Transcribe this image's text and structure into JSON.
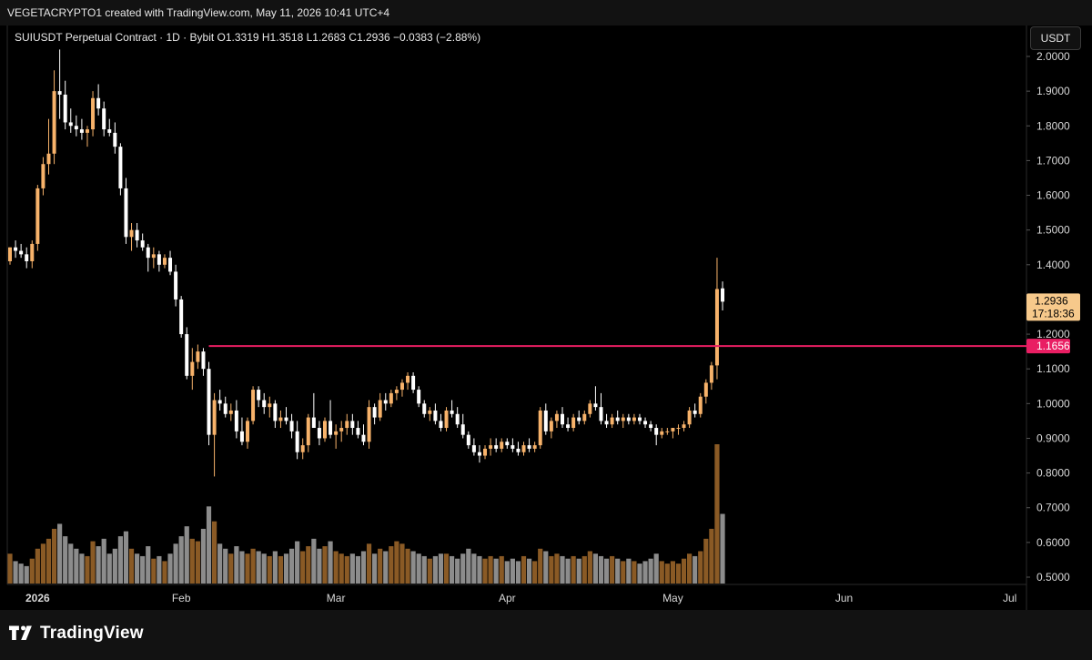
{
  "header": {
    "credit": "VEGETACRYPTO1 created with TradingView.com, May 11, 2026 10:41 UTC+4"
  },
  "legend": {
    "text": "SUIUSDT Perpetual Contract · 1D · Bybit  O1.3319  H1.3518  L1.2683  C1.2936  −0.0383 (−2.88%)"
  },
  "currency_button": "USDT",
  "footer": {
    "logo_text": "TradingView"
  },
  "colors": {
    "up": "#f7b26a",
    "down": "#ffffff",
    "vol_up": "#8a5a25",
    "vol_down": "#8c8c8c",
    "level_line": "#e91e63",
    "last_price_bg": "#f7c98b"
  },
  "chart_data": {
    "type": "candlestick",
    "symbol": "SUIUSDT",
    "interval": "1D",
    "exchange": "Bybit",
    "ylim": [
      0.47,
      2.06
    ],
    "y_ticks": [
      "2.0000",
      "1.9000",
      "1.8000",
      "1.7000",
      "1.6000",
      "1.5000",
      "1.4000",
      "1.3000",
      "1.2000",
      "1.1000",
      "1.0000",
      "0.9000",
      "0.8000",
      "0.7000",
      "0.6000",
      "0.5000"
    ],
    "x_labels": [
      {
        "label": "2026",
        "day": 0,
        "bold": true
      },
      {
        "label": "Feb",
        "day": 31
      },
      {
        "label": "Mar",
        "day": 59
      },
      {
        "label": "Apr",
        "day": 90
      },
      {
        "label": "May",
        "day": 120
      },
      {
        "label": "Jun",
        "day": 151
      },
      {
        "label": "Jul",
        "day": 181
      }
    ],
    "key_level": {
      "value": 1.1656,
      "label": "1.1656",
      "start_day": 36
    },
    "last_price": {
      "value": 1.2936,
      "label": "1.2936",
      "countdown": "17:18:36"
    },
    "candles": [
      [
        1.41,
        1.45,
        1.4,
        1.45,
        60
      ],
      [
        1.45,
        1.47,
        1.42,
        1.44,
        45
      ],
      [
        1.44,
        1.46,
        1.42,
        1.43,
        40
      ],
      [
        1.43,
        1.45,
        1.39,
        1.41,
        35
      ],
      [
        1.41,
        1.47,
        1.39,
        1.46,
        50
      ],
      [
        1.46,
        1.63,
        1.44,
        1.62,
        70
      ],
      [
        1.62,
        1.71,
        1.6,
        1.69,
        80
      ],
      [
        1.69,
        1.82,
        1.66,
        1.72,
        90
      ],
      [
        1.72,
        1.96,
        1.69,
        1.9,
        110
      ],
      [
        1.9,
        2.02,
        1.82,
        1.89,
        120
      ],
      [
        1.89,
        1.93,
        1.79,
        1.81,
        95
      ],
      [
        1.81,
        1.85,
        1.78,
        1.8,
        80
      ],
      [
        1.8,
        1.83,
        1.77,
        1.79,
        70
      ],
      [
        1.79,
        1.82,
        1.76,
        1.78,
        60
      ],
      [
        1.78,
        1.8,
        1.74,
        1.79,
        55
      ],
      [
        1.79,
        1.9,
        1.77,
        1.88,
        85
      ],
      [
        1.88,
        1.92,
        1.83,
        1.85,
        75
      ],
      [
        1.85,
        1.87,
        1.77,
        1.79,
        90
      ],
      [
        1.79,
        1.82,
        1.77,
        1.78,
        60
      ],
      [
        1.78,
        1.81,
        1.72,
        1.74,
        70
      ],
      [
        1.74,
        1.75,
        1.6,
        1.62,
        95
      ],
      [
        1.62,
        1.65,
        1.46,
        1.48,
        105
      ],
      [
        1.48,
        1.52,
        1.44,
        1.5,
        70
      ],
      [
        1.5,
        1.52,
        1.45,
        1.47,
        60
      ],
      [
        1.47,
        1.49,
        1.44,
        1.45,
        55
      ],
      [
        1.45,
        1.46,
        1.38,
        1.42,
        75
      ],
      [
        1.42,
        1.45,
        1.39,
        1.43,
        50
      ],
      [
        1.43,
        1.44,
        1.38,
        1.4,
        55
      ],
      [
        1.4,
        1.43,
        1.39,
        1.42,
        45
      ],
      [
        1.42,
        1.44,
        1.37,
        1.38,
        60
      ],
      [
        1.38,
        1.4,
        1.28,
        1.3,
        80
      ],
      [
        1.3,
        1.31,
        1.19,
        1.2,
        95
      ],
      [
        1.2,
        1.22,
        1.07,
        1.08,
        115
      ],
      [
        1.08,
        1.16,
        1.04,
        1.12,
        90
      ],
      [
        1.12,
        1.17,
        1.1,
        1.15,
        85
      ],
      [
        1.15,
        1.16,
        1.08,
        1.1,
        110
      ],
      [
        1.1,
        1.12,
        0.88,
        0.91,
        155
      ],
      [
        0.91,
        1.03,
        0.79,
        1.01,
        125
      ],
      [
        1.01,
        1.04,
        0.98,
        1.0,
        80
      ],
      [
        1.0,
        1.02,
        0.96,
        0.97,
        70
      ],
      [
        0.97,
        1.0,
        0.95,
        0.98,
        60
      ],
      [
        0.98,
        1.01,
        0.9,
        0.92,
        75
      ],
      [
        0.92,
        0.96,
        0.88,
        0.89,
        65
      ],
      [
        0.89,
        0.96,
        0.87,
        0.95,
        60
      ],
      [
        0.95,
        1.05,
        0.94,
        1.04,
        70
      ],
      [
        1.04,
        1.05,
        0.99,
        1.01,
        65
      ],
      [
        1.01,
        1.03,
        0.97,
        0.99,
        60
      ],
      [
        0.99,
        1.02,
        0.96,
        1.0,
        55
      ],
      [
        1.0,
        1.01,
        0.93,
        0.95,
        65
      ],
      [
        0.95,
        0.98,
        0.93,
        0.96,
        55
      ],
      [
        0.96,
        0.99,
        0.94,
        0.95,
        60
      ],
      [
        0.95,
        0.97,
        0.9,
        0.92,
        70
      ],
      [
        0.92,
        0.95,
        0.84,
        0.86,
        85
      ],
      [
        0.86,
        0.9,
        0.84,
        0.88,
        65
      ],
      [
        0.88,
        0.97,
        0.86,
        0.96,
        75
      ],
      [
        0.96,
        1.03,
        0.94,
        0.93,
        90
      ],
      [
        0.93,
        0.95,
        0.88,
        0.9,
        70
      ],
      [
        0.9,
        0.96,
        0.89,
        0.95,
        75
      ],
      [
        0.95,
        1.01,
        0.9,
        0.91,
        85
      ],
      [
        0.91,
        0.94,
        0.87,
        0.92,
        65
      ],
      [
        0.92,
        0.95,
        0.89,
        0.93,
        60
      ],
      [
        0.93,
        0.97,
        0.91,
        0.95,
        55
      ],
      [
        0.95,
        0.97,
        0.91,
        0.93,
        60
      ],
      [
        0.93,
        0.95,
        0.9,
        0.91,
        55
      ],
      [
        0.91,
        0.94,
        0.88,
        0.89,
        65
      ],
      [
        0.89,
        1.01,
        0.87,
        0.99,
        80
      ],
      [
        0.99,
        1.0,
        0.94,
        0.96,
        60
      ],
      [
        0.96,
        1.03,
        0.95,
        1.01,
        70
      ],
      [
        1.01,
        1.03,
        0.98,
        1.0,
        65
      ],
      [
        1.0,
        1.04,
        0.99,
        1.03,
        75
      ],
      [
        1.03,
        1.05,
        1.01,
        1.04,
        85
      ],
      [
        1.04,
        1.07,
        1.02,
        1.06,
        80
      ],
      [
        1.06,
        1.09,
        1.04,
        1.08,
        70
      ],
      [
        1.08,
        1.09,
        1.03,
        1.04,
        65
      ],
      [
        1.04,
        1.05,
        0.99,
        1.0,
        60
      ],
      [
        1.0,
        1.01,
        0.96,
        0.97,
        55
      ],
      [
        0.97,
        0.99,
        0.95,
        0.98,
        50
      ],
      [
        0.98,
        1.0,
        0.94,
        0.95,
        55
      ],
      [
        0.95,
        0.97,
        0.92,
        0.93,
        60
      ],
      [
        0.93,
        0.99,
        0.92,
        0.98,
        60
      ],
      [
        0.98,
        1.01,
        0.96,
        0.97,
        55
      ],
      [
        0.97,
        0.99,
        0.93,
        0.94,
        50
      ],
      [
        0.94,
        0.97,
        0.9,
        0.91,
        60
      ],
      [
        0.91,
        0.92,
        0.87,
        0.88,
        70
      ],
      [
        0.88,
        0.9,
        0.85,
        0.86,
        60
      ],
      [
        0.86,
        0.88,
        0.83,
        0.85,
        55
      ],
      [
        0.85,
        0.88,
        0.84,
        0.87,
        50
      ],
      [
        0.87,
        0.9,
        0.85,
        0.88,
        55
      ],
      [
        0.88,
        0.9,
        0.86,
        0.87,
        50
      ],
      [
        0.87,
        0.9,
        0.86,
        0.89,
        55
      ],
      [
        0.89,
        0.9,
        0.87,
        0.88,
        45
      ],
      [
        0.88,
        0.9,
        0.86,
        0.87,
        50
      ],
      [
        0.87,
        0.89,
        0.85,
        0.86,
        45
      ],
      [
        0.86,
        0.89,
        0.85,
        0.88,
        55
      ],
      [
        0.88,
        0.9,
        0.86,
        0.87,
        50
      ],
      [
        0.87,
        0.89,
        0.86,
        0.88,
        45
      ],
      [
        0.88,
        0.99,
        0.87,
        0.98,
        70
      ],
      [
        0.98,
        1.0,
        0.91,
        0.92,
        65
      ],
      [
        0.92,
        0.96,
        0.9,
        0.95,
        55
      ],
      [
        0.95,
        0.98,
        0.93,
        0.97,
        60
      ],
      [
        0.97,
        0.99,
        0.93,
        0.94,
        55
      ],
      [
        0.94,
        0.96,
        0.92,
        0.93,
        50
      ],
      [
        0.93,
        0.97,
        0.92,
        0.96,
        55
      ],
      [
        0.96,
        0.98,
        0.94,
        0.95,
        50
      ],
      [
        0.95,
        0.98,
        0.94,
        0.97,
        55
      ],
      [
        0.97,
        1.01,
        0.96,
        1.0,
        65
      ],
      [
        1.0,
        1.05,
        0.98,
        0.99,
        60
      ],
      [
        0.99,
        1.03,
        0.94,
        0.95,
        55
      ],
      [
        0.95,
        0.97,
        0.93,
        0.94,
        50
      ],
      [
        0.94,
        0.97,
        0.93,
        0.96,
        55
      ],
      [
        0.96,
        0.98,
        0.94,
        0.95,
        50
      ],
      [
        0.95,
        0.97,
        0.93,
        0.96,
        45
      ],
      [
        0.96,
        0.97,
        0.94,
        0.95,
        50
      ],
      [
        0.95,
        0.97,
        0.94,
        0.96,
        45
      ],
      [
        0.96,
        0.97,
        0.94,
        0.95,
        40
      ],
      [
        0.95,
        0.96,
        0.93,
        0.94,
        45
      ],
      [
        0.94,
        0.95,
        0.92,
        0.93,
        50
      ],
      [
        0.93,
        0.94,
        0.88,
        0.91,
        60
      ],
      [
        0.91,
        0.93,
        0.9,
        0.92,
        45
      ],
      [
        0.92,
        0.93,
        0.91,
        0.92,
        40
      ],
      [
        0.92,
        0.93,
        0.9,
        0.93,
        45
      ],
      [
        0.93,
        0.94,
        0.91,
        0.93,
        40
      ],
      [
        0.93,
        0.95,
        0.92,
        0.94,
        50
      ],
      [
        0.94,
        0.99,
        0.93,
        0.98,
        60
      ],
      [
        0.98,
        1.0,
        0.96,
        0.97,
        55
      ],
      [
        0.97,
        1.03,
        0.96,
        1.02,
        65
      ],
      [
        1.02,
        1.07,
        1.0,
        1.06,
        90
      ],
      [
        1.06,
        1.12,
        1.04,
        1.11,
        110
      ],
      [
        1.11,
        1.42,
        1.07,
        1.33,
        280
      ],
      [
        1.3319,
        1.3518,
        1.2683,
        1.2936,
        140
      ]
    ]
  }
}
